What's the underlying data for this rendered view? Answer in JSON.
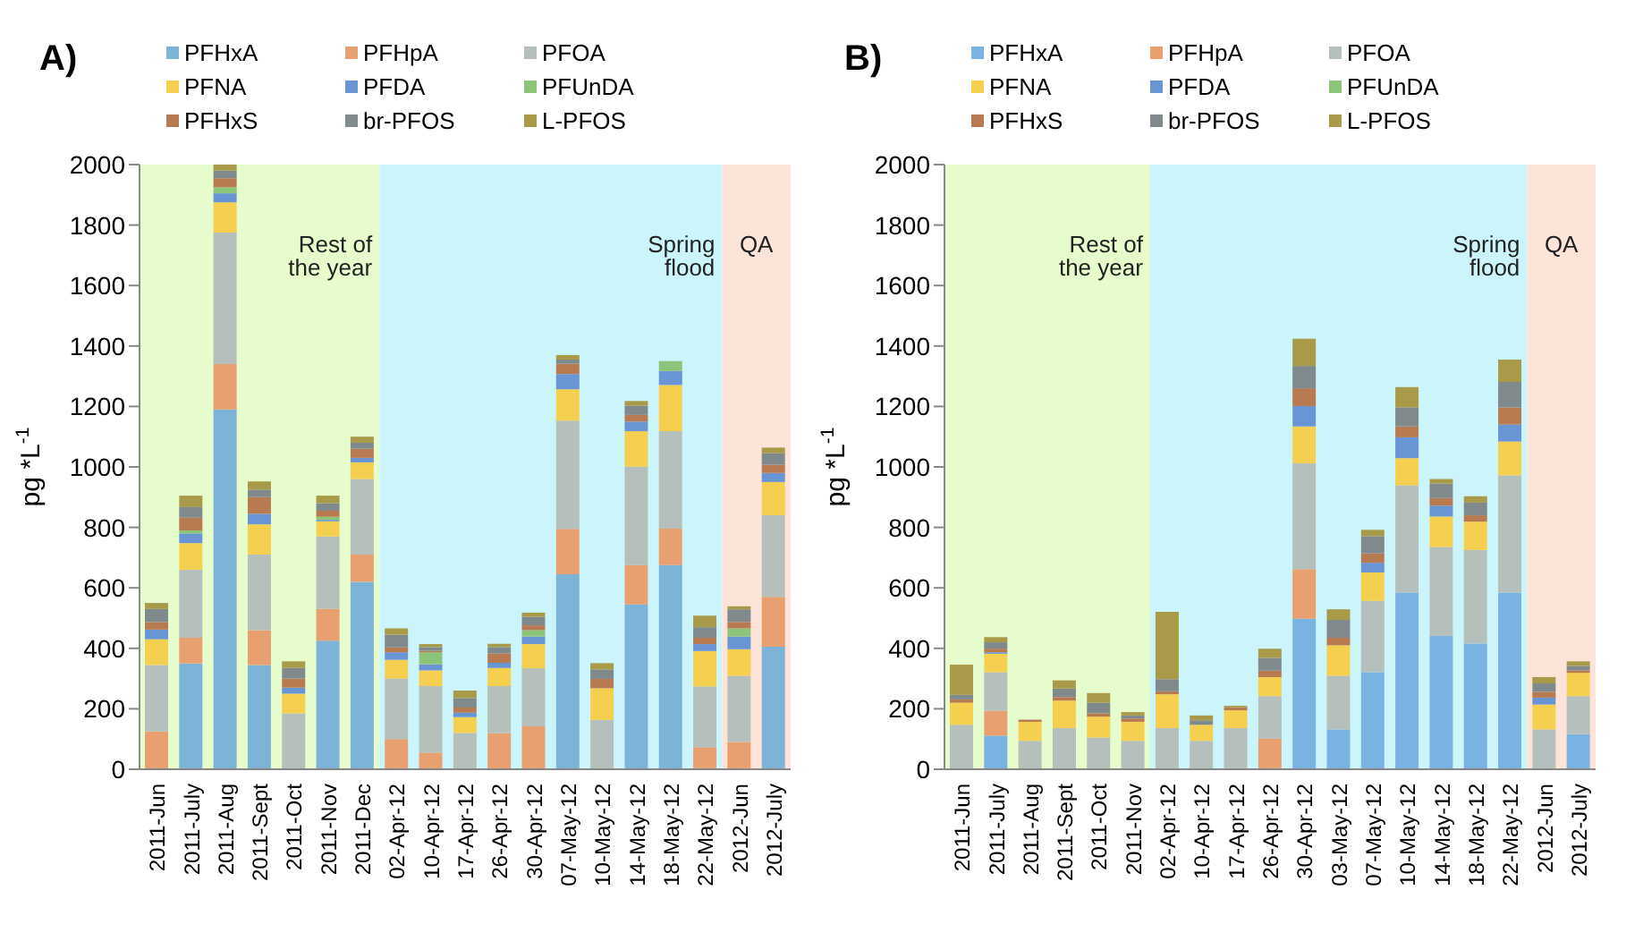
{
  "chart_data": [
    {
      "type": "bar",
      "title": "A)",
      "ylabel": "pg *L$^{-1}$",
      "stacked": true,
      "legend": "top",
      "ylim": [
        0,
        2000
      ],
      "yticks": [
        0,
        200,
        400,
        600,
        800,
        1000,
        1200,
        1400,
        1600,
        1800,
        2000
      ],
      "categories": [
        "2011-Jun",
        "2011-July",
        "2011-Aug",
        "2011-Sept",
        "2011-Oct",
        "2011-Nov",
        "2011-Dec",
        "02-Apr-12",
        "10-Apr-12",
        "17-Apr-12",
        "26-Apr-12",
        "30-Apr-12",
        "07-May-12",
        "10-May-12",
        "14-May-12",
        "18-May-12",
        "22-May-12",
        "2012-Jun",
        "2012-July"
      ],
      "bands": [
        {
          "axis": "x",
          "from": "2011-Jun",
          "to": "2011-Dec",
          "label": "Rest of the year",
          "color": "#e6fccc"
        },
        {
          "axis": "x",
          "from": "02-Apr-12",
          "to": "22-May-12",
          "label": "Spring flood",
          "color": "#ccf5fb"
        },
        {
          "axis": "x",
          "from": "2012-Jun",
          "to": "2012-July",
          "label": "QA",
          "color": "#fce4d8"
        }
      ],
      "series": [
        {
          "name": "PFHxA",
          "color": "#7eb3d8",
          "values": [
            0,
            350,
            1190,
            345,
            0,
            425,
            620,
            0,
            0,
            0,
            0,
            0,
            645,
            0,
            545,
            675,
            0,
            0,
            405
          ]
        },
        {
          "name": "PFHpA",
          "color": "#e8a070",
          "values": [
            125,
            85,
            150,
            115,
            0,
            105,
            90,
            100,
            55,
            0,
            120,
            142,
            150,
            0,
            130,
            121,
            73,
            90,
            165
          ]
        },
        {
          "name": "PFOA",
          "color": "#b5bfbc",
          "values": [
            220,
            225,
            435,
            250,
            185,
            240,
            250,
            200,
            220,
            120,
            155,
            192,
            358,
            163,
            326,
            322,
            201,
            219,
            270
          ]
        },
        {
          "name": "PFNA",
          "color": "#f5d050",
          "values": [
            85,
            88,
            100,
            100,
            65,
            50,
            55,
            62,
            52,
            52,
            60,
            80,
            104,
            105,
            117,
            153,
            117,
            88,
            110
          ]
        },
        {
          "name": "PFDA",
          "color": "#6a95d5",
          "values": [
            32,
            32,
            30,
            35,
            20,
            5,
            15,
            25,
            20,
            15,
            17,
            25,
            50,
            0,
            32,
            46,
            23,
            42,
            30
          ]
        },
        {
          "name": "PFUnDA",
          "color": "#8cc47a",
          "values": [
            0,
            10,
            20,
            0,
            0,
            10,
            0,
            0,
            40,
            0,
            0,
            21,
            0,
            0,
            0,
            33,
            0,
            27,
            0
          ]
        },
        {
          "name": "PFHxS",
          "color": "#b87a50",
          "values": [
            25,
            42,
            30,
            55,
            30,
            20,
            30,
            16,
            5,
            17,
            31,
            16,
            34,
            31,
            22,
            0,
            21,
            21,
            27
          ]
        },
        {
          "name": "br-PFOS",
          "color": "#808a8c",
          "values": [
            43,
            35,
            25,
            25,
            35,
            25,
            20,
            42,
            12,
            31,
            21,
            28,
            14,
            31,
            30,
            0,
            35,
            42,
            38
          ]
        },
        {
          "name": "L-PFOS",
          "color": "#a89a48",
          "values": [
            20,
            38,
            20,
            27,
            22,
            25,
            20,
            21,
            10,
            25,
            11,
            14,
            15,
            21,
            16,
            0,
            38,
            10,
            19
          ]
        }
      ]
    },
    {
      "type": "bar",
      "title": "B)",
      "ylabel": "pg *L$^{-1}$",
      "stacked": true,
      "legend": "top",
      "ylim": [
        0,
        2000
      ],
      "yticks": [
        0,
        200,
        400,
        600,
        800,
        1000,
        1200,
        1400,
        1600,
        1800,
        2000
      ],
      "categories": [
        "2011-Jun",
        "2011-July",
        "2011-Aug",
        "2011-Sept",
        "2011-Oct",
        "2011-Nov",
        "02-Apr-12",
        "10-Apr-12",
        "17-Apr-12",
        "26-Apr-12",
        "30-Apr-12",
        "03-May-12",
        "07-May-12",
        "10-May-12",
        "14-May-12",
        "18-May-12",
        "22-May-12",
        "2012-Jun",
        "2012-July"
      ],
      "bands": [
        {
          "axis": "x",
          "from": "2011-Jun",
          "to": "2011-Nov",
          "label": "Rest of the year",
          "color": "#e6fccc"
        },
        {
          "axis": "x",
          "from": "02-Apr-12",
          "to": "22-May-12",
          "label": "Spring flood",
          "color": "#ccf5fb"
        },
        {
          "axis": "x",
          "from": "2012-Jun",
          "to": "2012-July",
          "label": "QA",
          "color": "#fce4d8"
        }
      ],
      "series": [
        {
          "name": "PFHxA",
          "color": "#7ab3e2",
          "values": [
            0,
            111,
            0,
            0,
            0,
            0,
            0,
            0,
            0,
            0,
            498,
            132,
            321,
            584,
            441,
            416,
            584,
            0,
            116
          ]
        },
        {
          "name": "PFHpA",
          "color": "#e8a070",
          "values": [
            0,
            82,
            0,
            0,
            0,
            0,
            0,
            0,
            0,
            101,
            164,
            0,
            0,
            0,
            0,
            0,
            0,
            0,
            0
          ]
        },
        {
          "name": "PFOA",
          "color": "#b5bfbc",
          "values": [
            147,
            128,
            94,
            136,
            105,
            94,
            136,
            94,
            136,
            141,
            350,
            177,
            236,
            355,
            294,
            309,
            388,
            132,
            126
          ]
        },
        {
          "name": "PFNA",
          "color": "#f5d050",
          "values": [
            73,
            61,
            63,
            91,
            69,
            63,
            112,
            53,
            59,
            63,
            122,
            101,
            94,
            90,
            101,
            94,
            112,
            82,
            77
          ]
        },
        {
          "name": "PFDA",
          "color": "#6a95d5",
          "values": [
            0,
            5,
            0,
            0,
            0,
            0,
            0,
            0,
            0,
            0,
            67,
            0,
            32,
            69,
            36,
            0,
            56,
            23,
            0
          ]
        },
        {
          "name": "PFUnDA",
          "color": "#8cc47a",
          "values": [
            0,
            0,
            0,
            0,
            0,
            0,
            0,
            0,
            0,
            0,
            0,
            0,
            0,
            0,
            0,
            0,
            0,
            0,
            0
          ]
        },
        {
          "name": "PFHxS",
          "color": "#b87a50",
          "values": [
            11,
            12,
            7,
            12,
            11,
            11,
            10,
            0,
            10,
            21,
            59,
            25,
            31,
            36,
            25,
            21,
            57,
            19,
            8
          ]
        },
        {
          "name": "br-PFOS",
          "color": "#808a8c",
          "values": [
            15,
            21,
            0,
            28,
            35,
            10,
            40,
            15,
            0,
            42,
            74,
            59,
            57,
            63,
            48,
            42,
            84,
            28,
            15
          ]
        },
        {
          "name": "L-PFOS",
          "color": "#a89a48",
          "values": [
            100,
            17,
            0,
            27,
            32,
            11,
            223,
            16,
            5,
            31,
            90,
            35,
            21,
            67,
            15,
            21,
            74,
            21,
            15
          ]
        }
      ]
    }
  ]
}
